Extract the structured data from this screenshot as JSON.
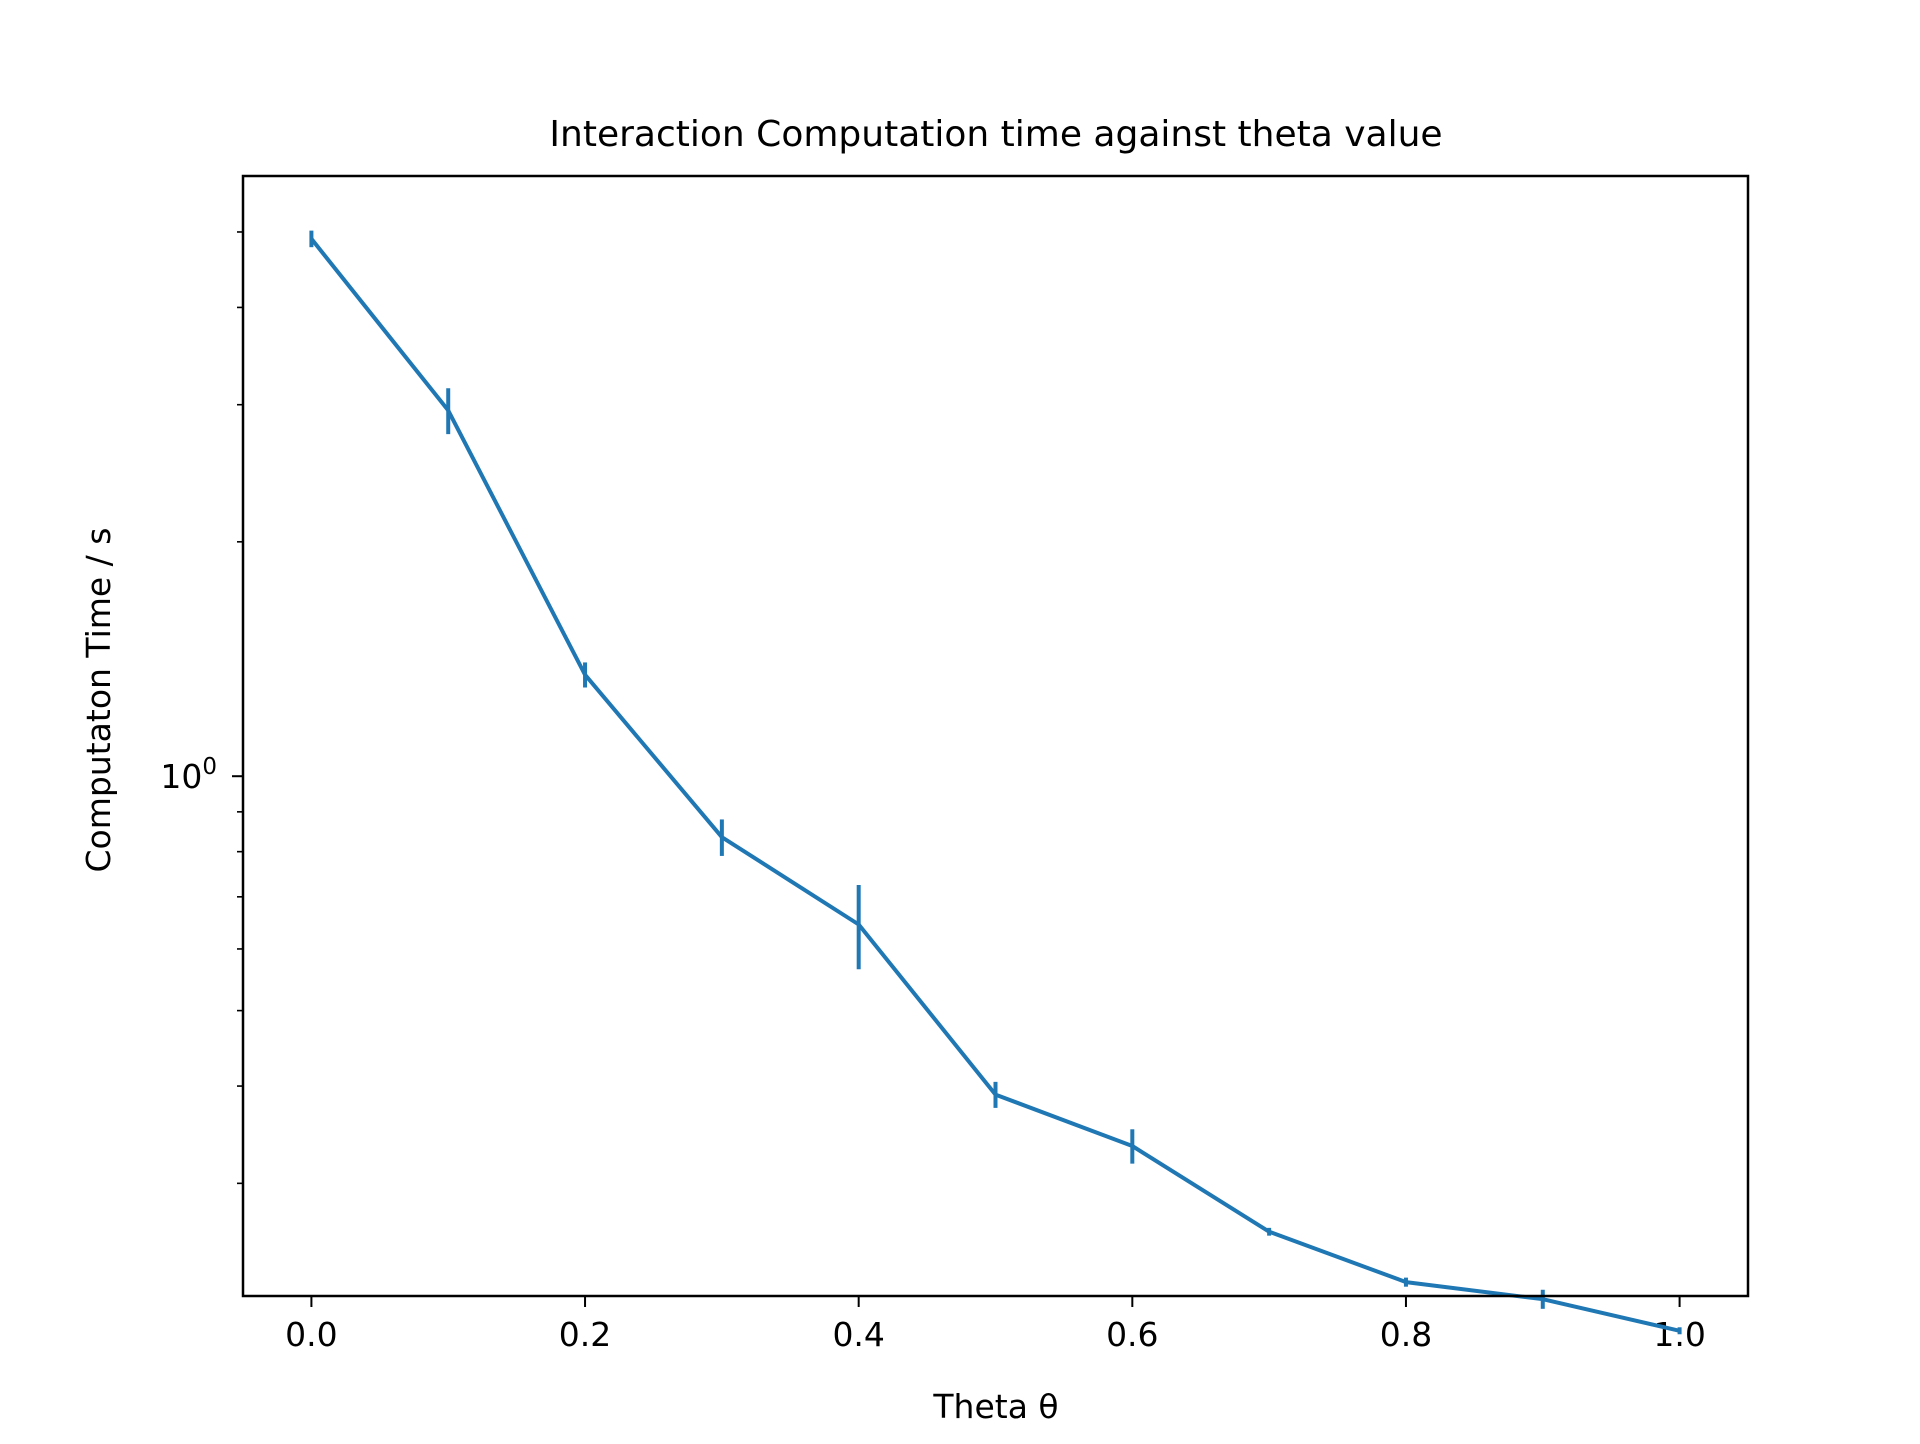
{
  "chart_data": {
    "type": "line",
    "title": "Interaction Computation time against theta value",
    "xlabel": "Theta θ",
    "ylabel": "Computaton Time / s",
    "xlim": [
      -0.05,
      1.05
    ],
    "ylim": [
      0.215,
      5.9
    ],
    "yscale": "log",
    "grid": false,
    "x_ticks": [
      {
        "value": 0.0,
        "label": "0.0"
      },
      {
        "value": 0.2,
        "label": "0.2"
      },
      {
        "value": 0.4,
        "label": "0.4"
      },
      {
        "value": 0.6,
        "label": "0.6"
      },
      {
        "value": 0.8,
        "label": "0.8"
      },
      {
        "value": 1.0,
        "label": "1.0"
      }
    ],
    "y_major_ticks": [
      {
        "value": 1,
        "base": "10",
        "exponent": "0"
      }
    ],
    "y_minor_ticks": [
      0.3,
      0.4,
      0.5,
      0.6,
      0.7,
      0.8,
      0.9,
      2,
      3,
      4,
      5
    ],
    "series": [
      {
        "color": "#1f77b4",
        "x": [
          0.0,
          0.1,
          0.2,
          0.3,
          0.4,
          0.5,
          0.6,
          0.7,
          0.8,
          0.9,
          1.0
        ],
        "y": [
          4.9,
          2.95,
          1.35,
          0.835,
          0.645,
          0.39,
          0.335,
          0.26,
          0.224,
          0.213,
          0.194
        ],
        "yerr": [
          0.12,
          0.2,
          0.05,
          0.045,
          0.08,
          0.015,
          0.017,
          0.003,
          0.003,
          0.006,
          0.002
        ]
      }
    ]
  }
}
